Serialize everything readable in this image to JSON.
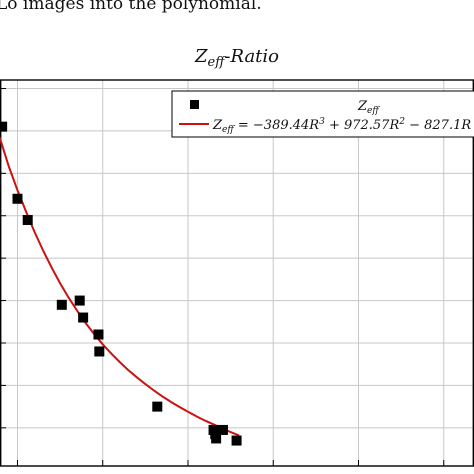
{
  "caption_fragment": "Lo images into the polynomial.",
  "chart_data": {
    "type": "scatter",
    "title": "Z_eff-Ratio",
    "title_parts": {
      "base": "Z",
      "sub": "eff",
      "suffix": "-Ratio"
    },
    "xlabel": "",
    "ylabel": "",
    "xlim": [
      0.2295,
      0.7855
    ],
    "ylim": [
      19.1,
      28.2
    ],
    "x_gridlines": [
      0.25,
      0.35,
      0.45,
      0.55,
      0.65,
      0.75
    ],
    "y_gridlines": [
      20,
      21,
      22,
      23,
      24,
      25,
      26,
      27,
      28
    ],
    "grid": true,
    "legend_position": "top-right",
    "series": [
      {
        "name": "Z_eff",
        "legend_label": {
          "base": "Z",
          "sub": "eff"
        },
        "kind": "scatter",
        "marker": "square",
        "color": "#000000",
        "x": [
          0.232,
          0.25,
          0.262,
          0.302,
          0.323,
          0.327,
          0.345,
          0.346,
          0.414,
          0.48,
          0.482,
          0.483,
          0.491,
          0.507
        ],
        "y": [
          27.1,
          25.4,
          24.9,
          22.9,
          23.0,
          22.6,
          22.2,
          21.8,
          20.5,
          19.95,
          19.85,
          19.75,
          19.95,
          19.7
        ]
      },
      {
        "name": "Z_eff = −389.44R^3 + 972.57R^2 − 827.1R",
        "legend_label": {
          "base": "Z",
          "sub": "eff",
          "equation": " = −389.44R",
          "sup1": "3",
          "mid1": " + 972.57R",
          "sup2": "2",
          "tail": " − 827.1R"
        },
        "kind": "line",
        "color": "#cc1111",
        "x": [
          0.229,
          0.24,
          0.25,
          0.26,
          0.27,
          0.28,
          0.29,
          0.3,
          0.31,
          0.32,
          0.33,
          0.34,
          0.35,
          0.36,
          0.37,
          0.38,
          0.39,
          0.4,
          0.41,
          0.42,
          0.43,
          0.44,
          0.45,
          0.46,
          0.47,
          0.48,
          0.49,
          0.5,
          0.51
        ],
        "y": [
          26.85,
          26.15,
          25.6,
          25.1,
          24.62,
          24.18,
          23.78,
          23.41,
          23.07,
          22.76,
          22.47,
          22.21,
          21.97,
          21.75,
          21.55,
          21.36,
          21.19,
          21.03,
          20.88,
          20.74,
          20.61,
          20.49,
          20.38,
          20.27,
          20.17,
          20.08,
          19.99,
          19.9,
          19.82
        ]
      }
    ]
  }
}
